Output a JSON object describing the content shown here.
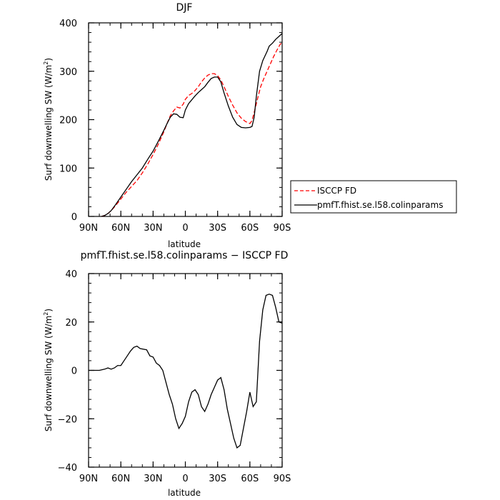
{
  "chart_data": [
    {
      "type": "line",
      "title": "DJF",
      "xlabel": "latitude",
      "ylabel_main": "Surf downwelling SW (W/m",
      "ylabel_sup": "2",
      "ylabel_close": ")",
      "xlim": [
        90,
        -90
      ],
      "ylim": [
        0,
        400
      ],
      "xticks": [
        90,
        60,
        30,
        0,
        -30,
        -60,
        -90
      ],
      "xtick_labels": [
        "90N",
        "60N",
        "30N",
        "0",
        "30S",
        "60S",
        "90S"
      ],
      "yticks": [
        0,
        100,
        200,
        300,
        400
      ],
      "ytick_labels": [
        "0",
        "100",
        "200",
        "300",
        "400"
      ],
      "legend": "right-outside",
      "grid": false,
      "series": [
        {
          "name": "ISCCP FD",
          "color": "#ff0000",
          "dash": "dashed",
          "points": [
            [
              78,
              0
            ],
            [
              75,
              2
            ],
            [
              72,
              6
            ],
            [
              69,
              12
            ],
            [
              65,
              22
            ],
            [
              60,
              36
            ],
            [
              55,
              50
            ],
            [
              50,
              62
            ],
            [
              45,
              74
            ],
            [
              40,
              90
            ],
            [
              35,
              108
            ],
            [
              30,
              128
            ],
            [
              25,
              150
            ],
            [
              20,
              175
            ],
            [
              17,
              192
            ],
            [
              14,
              208
            ],
            [
              11,
              218
            ],
            [
              8,
              226
            ],
            [
              5,
              224
            ],
            [
              2,
              232
            ],
            [
              0,
              242
            ],
            [
              -3,
              250
            ],
            [
              -6,
              254
            ],
            [
              -9,
              260
            ],
            [
              -12,
              268
            ],
            [
              -15,
              278
            ],
            [
              -18,
              286
            ],
            [
              -21,
              292
            ],
            [
              -24,
              295
            ],
            [
              -27,
              295
            ],
            [
              -30,
              291
            ],
            [
              -33,
              282
            ],
            [
              -36,
              268
            ],
            [
              -40,
              248
            ],
            [
              -44,
              230
            ],
            [
              -48,
              214
            ],
            [
              -52,
              203
            ],
            [
              -56,
              196
            ],
            [
              -60,
              192
            ],
            [
              -62,
              198
            ],
            [
              -64,
              215
            ],
            [
              -67,
              242
            ],
            [
              -70,
              268
            ],
            [
              -73,
              285
            ],
            [
              -76,
              300
            ],
            [
              -79,
              315
            ],
            [
              -82,
              330
            ],
            [
              -85,
              343
            ],
            [
              -88,
              355
            ],
            [
              -90,
              360
            ]
          ]
        },
        {
          "name": "pmfT.fhist.se.l58.colinparams",
          "color": "#000000",
          "dash": "solid",
          "points": [
            [
              78,
              0
            ],
            [
              75,
              2
            ],
            [
              72,
              6
            ],
            [
              69,
              12
            ],
            [
              65,
              24
            ],
            [
              60,
              40
            ],
            [
              55,
              56
            ],
            [
              50,
              72
            ],
            [
              45,
              86
            ],
            [
              40,
              100
            ],
            [
              35,
              118
            ],
            [
              30,
              135
            ],
            [
              25,
              156
            ],
            [
              20,
              178
            ],
            [
              17,
              192
            ],
            [
              14,
              205
            ],
            [
              11,
              212
            ],
            [
              8,
              211
            ],
            [
              5,
              205
            ],
            [
              2,
              204
            ],
            [
              0,
              220
            ],
            [
              -3,
              233
            ],
            [
              -6,
              241
            ],
            [
              -9,
              249
            ],
            [
              -12,
              256
            ],
            [
              -15,
              262
            ],
            [
              -18,
              268
            ],
            [
              -21,
              277
            ],
            [
              -24,
              285
            ],
            [
              -27,
              288
            ],
            [
              -30,
              288
            ],
            [
              -33,
              278
            ],
            [
              -36,
              255
            ],
            [
              -40,
              228
            ],
            [
              -44,
              205
            ],
            [
              -48,
              190
            ],
            [
              -52,
              184
            ],
            [
              -56,
              183
            ],
            [
              -60,
              184
            ],
            [
              -62,
              186
            ],
            [
              -64,
              205
            ],
            [
              -66,
              248
            ],
            [
              -69,
              300
            ],
            [
              -72,
              322
            ],
            [
              -76,
              341
            ],
            [
              -78,
              352
            ],
            [
              -81,
              358
            ],
            [
              -84,
              366
            ],
            [
              -87,
              372
            ],
            [
              -90,
              378
            ]
          ]
        }
      ]
    },
    {
      "type": "line",
      "title": "pmfT.fhist.se.l58.colinparams − ISCCP FD",
      "xlabel": "latitude",
      "ylabel_main": "Surf downwelling SW (W/m",
      "ylabel_sup": "2",
      "ylabel_close": ")",
      "xlim": [
        90,
        -90
      ],
      "ylim": [
        -40,
        40
      ],
      "xticks": [
        90,
        60,
        30,
        0,
        -30,
        -60,
        -90
      ],
      "xtick_labels": [
        "90N",
        "60N",
        "30N",
        "0",
        "30S",
        "60S",
        "90S"
      ],
      "yticks": [
        -40,
        -20,
        0,
        20,
        40
      ],
      "ytick_labels": [
        "−40",
        "−20",
        "0",
        "20",
        "40"
      ],
      "grid": false,
      "series": [
        {
          "color": "#000000",
          "dash": "solid",
          "points": [
            [
              90,
              0
            ],
            [
              80,
              0
            ],
            [
              75,
              0.5
            ],
            [
              72,
              1
            ],
            [
              69,
              0.5
            ],
            [
              66,
              1
            ],
            [
              63,
              2
            ],
            [
              60,
              2
            ],
            [
              57,
              4
            ],
            [
              54,
              6
            ],
            [
              51,
              8
            ],
            [
              48,
              9.5
            ],
            [
              45,
              10
            ],
            [
              42,
              9
            ],
            [
              36,
              8.5
            ],
            [
              33,
              6
            ],
            [
              30,
              5.5
            ],
            [
              27,
              3
            ],
            [
              24,
              2
            ],
            [
              21,
              0
            ],
            [
              18,
              -5
            ],
            [
              15,
              -10
            ],
            [
              12,
              -14
            ],
            [
              9,
              -20
            ],
            [
              6,
              -24
            ],
            [
              3,
              -22
            ],
            [
              0,
              -19
            ],
            [
              -3,
              -13
            ],
            [
              -6,
              -9
            ],
            [
              -9,
              -8
            ],
            [
              -12,
              -10
            ],
            [
              -15,
              -15
            ],
            [
              -18,
              -17
            ],
            [
              -21,
              -14
            ],
            [
              -24,
              -10
            ],
            [
              -27,
              -7
            ],
            [
              -30,
              -4
            ],
            [
              -33,
              -3
            ],
            [
              -36,
              -8
            ],
            [
              -39,
              -16
            ],
            [
              -42,
              -22
            ],
            [
              -45,
              -28
            ],
            [
              -48,
              -32
            ],
            [
              -51,
              -31
            ],
            [
              -54,
              -24
            ],
            [
              -57,
              -17
            ],
            [
              -60,
              -9
            ],
            [
              -63,
              -15
            ],
            [
              -66,
              -13
            ],
            [
              -69,
              12
            ],
            [
              -72,
              25
            ],
            [
              -75,
              31
            ],
            [
              -78,
              31.5
            ],
            [
              -81,
              31
            ],
            [
              -84,
              26
            ],
            [
              -87,
              20
            ],
            [
              -90,
              19.5
            ]
          ]
        }
      ]
    }
  ]
}
